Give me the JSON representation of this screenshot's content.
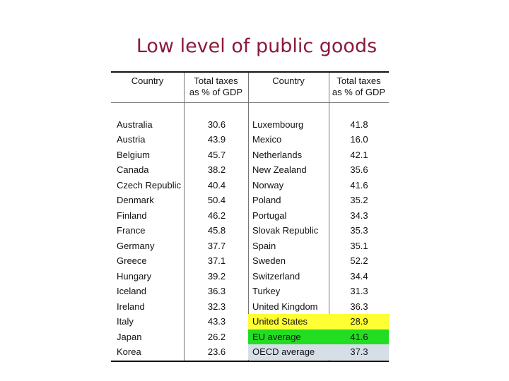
{
  "title": "Low level of public goods",
  "header": {
    "country_label": "Country",
    "taxes_line1": "Total taxes",
    "taxes_line2": "as % of GDP"
  },
  "highlight_colors": {
    "United States": "#ffff33",
    "EU average": "#22dd22",
    "OECD average": "#d6dee8"
  },
  "left_rows": [
    {
      "country": "Australia",
      "value": "30.6"
    },
    {
      "country": "Austria",
      "value": "43.9"
    },
    {
      "country": "Belgium",
      "value": "45.7"
    },
    {
      "country": "Canada",
      "value": "38.2"
    },
    {
      "country": "Czech Republic",
      "value": "40.4"
    },
    {
      "country": "Denmark",
      "value": "50.4"
    },
    {
      "country": "Finland",
      "value": "46.2"
    },
    {
      "country": "France",
      "value": "45.8"
    },
    {
      "country": "Germany",
      "value": "37.7"
    },
    {
      "country": "Greece",
      "value": "37.1"
    },
    {
      "country": "Hungary",
      "value": "39.2"
    },
    {
      "country": "Iceland",
      "value": "36.3"
    },
    {
      "country": "Ireland",
      "value": "32.3"
    },
    {
      "country": "Italy",
      "value": "43.3"
    },
    {
      "country": "Japan",
      "value": "26.2"
    },
    {
      "country": "Korea",
      "value": "23.6"
    }
  ],
  "right_rows": [
    {
      "country": "Luxembourg",
      "value": "41.8"
    },
    {
      "country": "Mexico",
      "value": "16.0"
    },
    {
      "country": "Netherlands",
      "value": "42.1"
    },
    {
      "country": "New Zealand",
      "value": "35.6"
    },
    {
      "country": "Norway",
      "value": "41.6"
    },
    {
      "country": "Poland",
      "value": "35.2"
    },
    {
      "country": "Portugal",
      "value": "34.3"
    },
    {
      "country": "Slovak Republic",
      "value": "35.3"
    },
    {
      "country": "Spain",
      "value": "35.1"
    },
    {
      "country": "Sweden",
      "value": "52.2"
    },
    {
      "country": "Switzerland",
      "value": "34.4"
    },
    {
      "country": "Turkey",
      "value": "31.3"
    },
    {
      "country": "United Kingdom",
      "value": "36.3"
    },
    {
      "country": "United States",
      "value": "28.9"
    },
    {
      "country": "EU average",
      "value": "41.6"
    },
    {
      "country": "OECD average",
      "value": "37.3"
    }
  ]
}
